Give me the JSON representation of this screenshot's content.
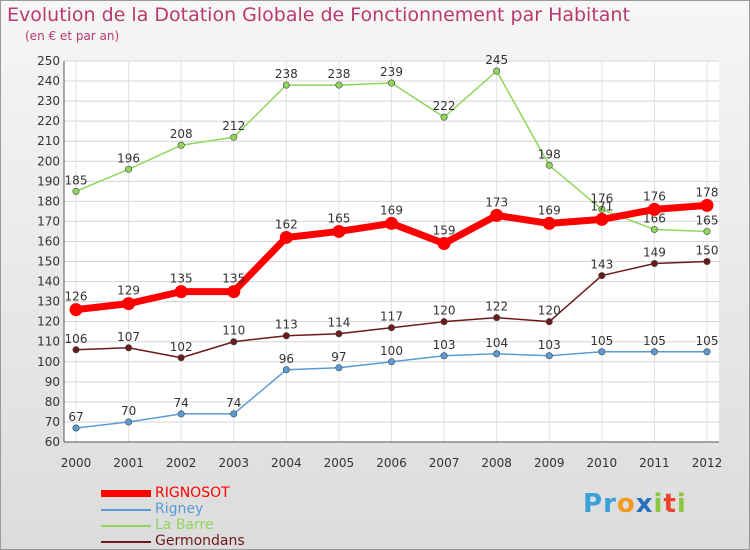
{
  "chart_data": {
    "type": "line",
    "title": "Evolution de la Dotation Globale de Fonctionnement par Habitant",
    "subtitle": "(en € et par an)",
    "categories": [
      "2000",
      "2001",
      "2002",
      "2003",
      "2004",
      "2005",
      "2006",
      "2007",
      "2008",
      "2009",
      "2010",
      "2011",
      "2012"
    ],
    "ylim": [
      60,
      250
    ],
    "yticks": [
      60,
      70,
      80,
      90,
      100,
      110,
      120,
      130,
      140,
      150,
      160,
      170,
      180,
      190,
      200,
      210,
      220,
      230,
      240,
      250
    ],
    "grid": true,
    "series": [
      {
        "name": "RIGNOSOT",
        "color": "#ff0000",
        "values": [
          126,
          129,
          135,
          135,
          162,
          165,
          169,
          159,
          173,
          169,
          171,
          176,
          178
        ]
      },
      {
        "name": "Rigney",
        "color": "#5b9bd5",
        "values": [
          67,
          70,
          74,
          74,
          96,
          97,
          100,
          103,
          104,
          103,
          105,
          105,
          105
        ]
      },
      {
        "name": "La Barre",
        "color": "#8fd65b",
        "values": [
          185,
          196,
          208,
          212,
          238,
          238,
          239,
          222,
          245,
          198,
          176,
          166,
          165
        ]
      },
      {
        "name": "Germondans",
        "color": "#6b1a1a",
        "values": [
          106,
          107,
          102,
          110,
          113,
          114,
          117,
          120,
          122,
          120,
          143,
          149,
          150
        ]
      }
    ]
  },
  "legend": {
    "items": [
      {
        "label": "RIGNOSOT",
        "color": "#ff0000"
      },
      {
        "label": "Rigney",
        "color": "#5b9bd5"
      },
      {
        "label": "La Barre",
        "color": "#8fd65b"
      },
      {
        "label": "Germondans",
        "color": "#6b1a1a"
      }
    ]
  },
  "logo": {
    "text": "Proxiti",
    "letters": [
      "P",
      "r",
      "o",
      "x",
      "i",
      "t",
      "i"
    ],
    "colors": [
      "#3aa0d8",
      "#3aa0d8",
      "#f39a1e",
      "#2a6fbf",
      "#8cc63f",
      "#e8432e",
      "#8cc63f"
    ]
  }
}
